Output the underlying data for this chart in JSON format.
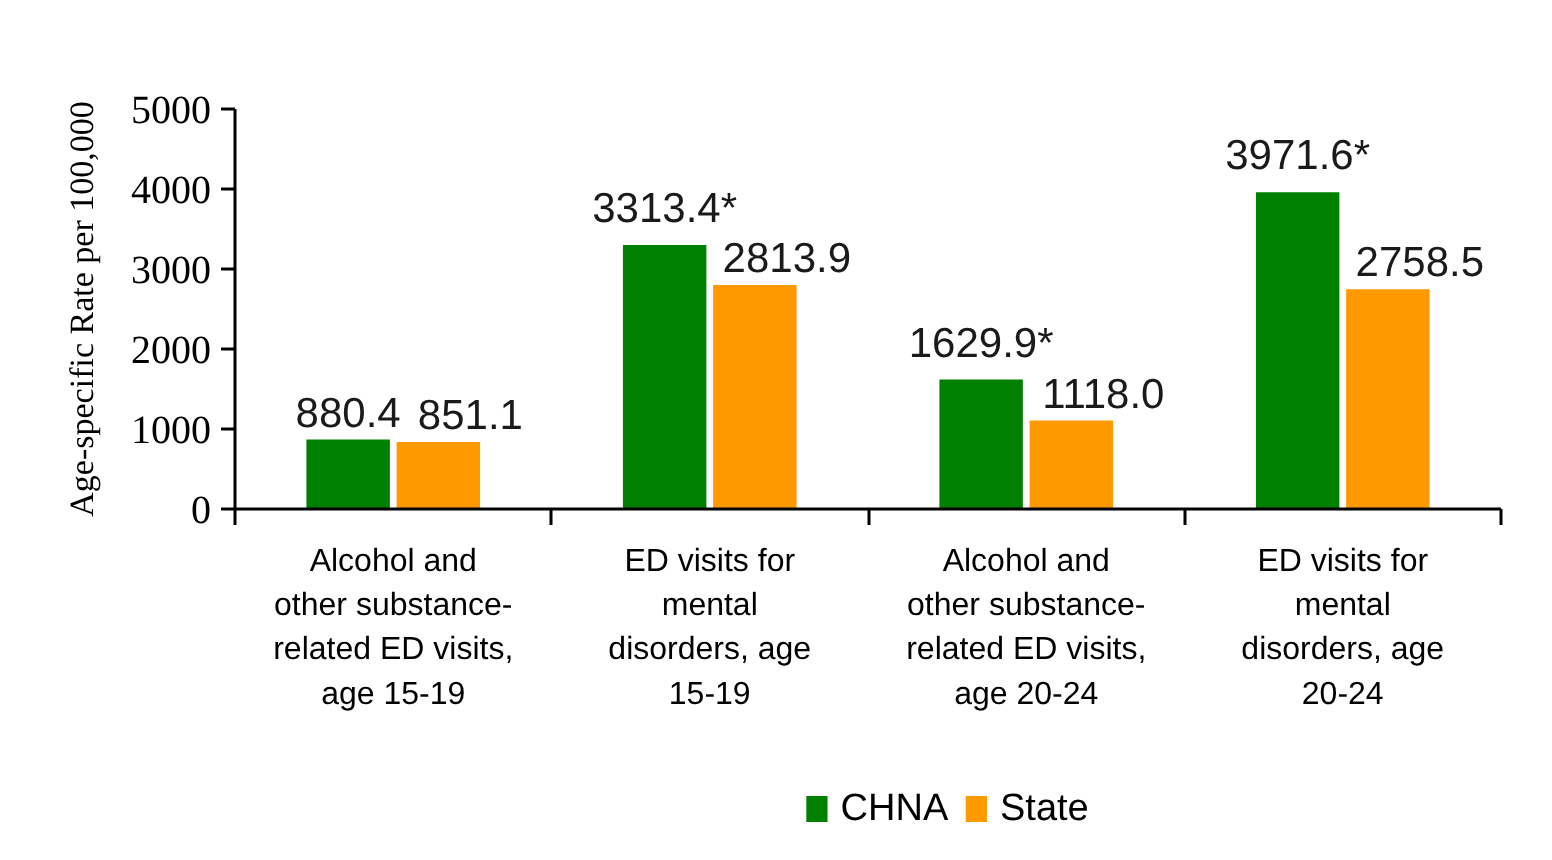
{
  "chart_data": {
    "type": "bar",
    "categories": [
      "Alcohol and\nother substance-\nrelated ED visits,\nage 15-19",
      "ED visits for\nmental\ndisorders, age\n15-19",
      "Alcohol and\nother substance-\nrelated ED visits,\nage 20-24",
      "ED visits for\nmental\ndisorders, age\n20-24"
    ],
    "series": [
      {
        "name": "CHNA",
        "color": "#008000",
        "values": [
          880.4,
          3313.4,
          1629.9,
          3971.6
        ],
        "value_labels": [
          "880.4",
          "3313.4*",
          "1629.9*",
          "3971.6*"
        ]
      },
      {
        "name": "State",
        "color": "#ff9900",
        "values": [
          851.1,
          2813.9,
          1118.0,
          2758.5
        ],
        "value_labels": [
          "851.1",
          "2813.9",
          "1118.0",
          "2758.5"
        ]
      }
    ],
    "ylabel": "Age-specific Rate per 100,000",
    "ylim": [
      0,
      5000
    ],
    "yticks": [
      0,
      1000,
      2000,
      3000,
      4000,
      5000
    ],
    "grid": false,
    "legend": "bottom"
  }
}
